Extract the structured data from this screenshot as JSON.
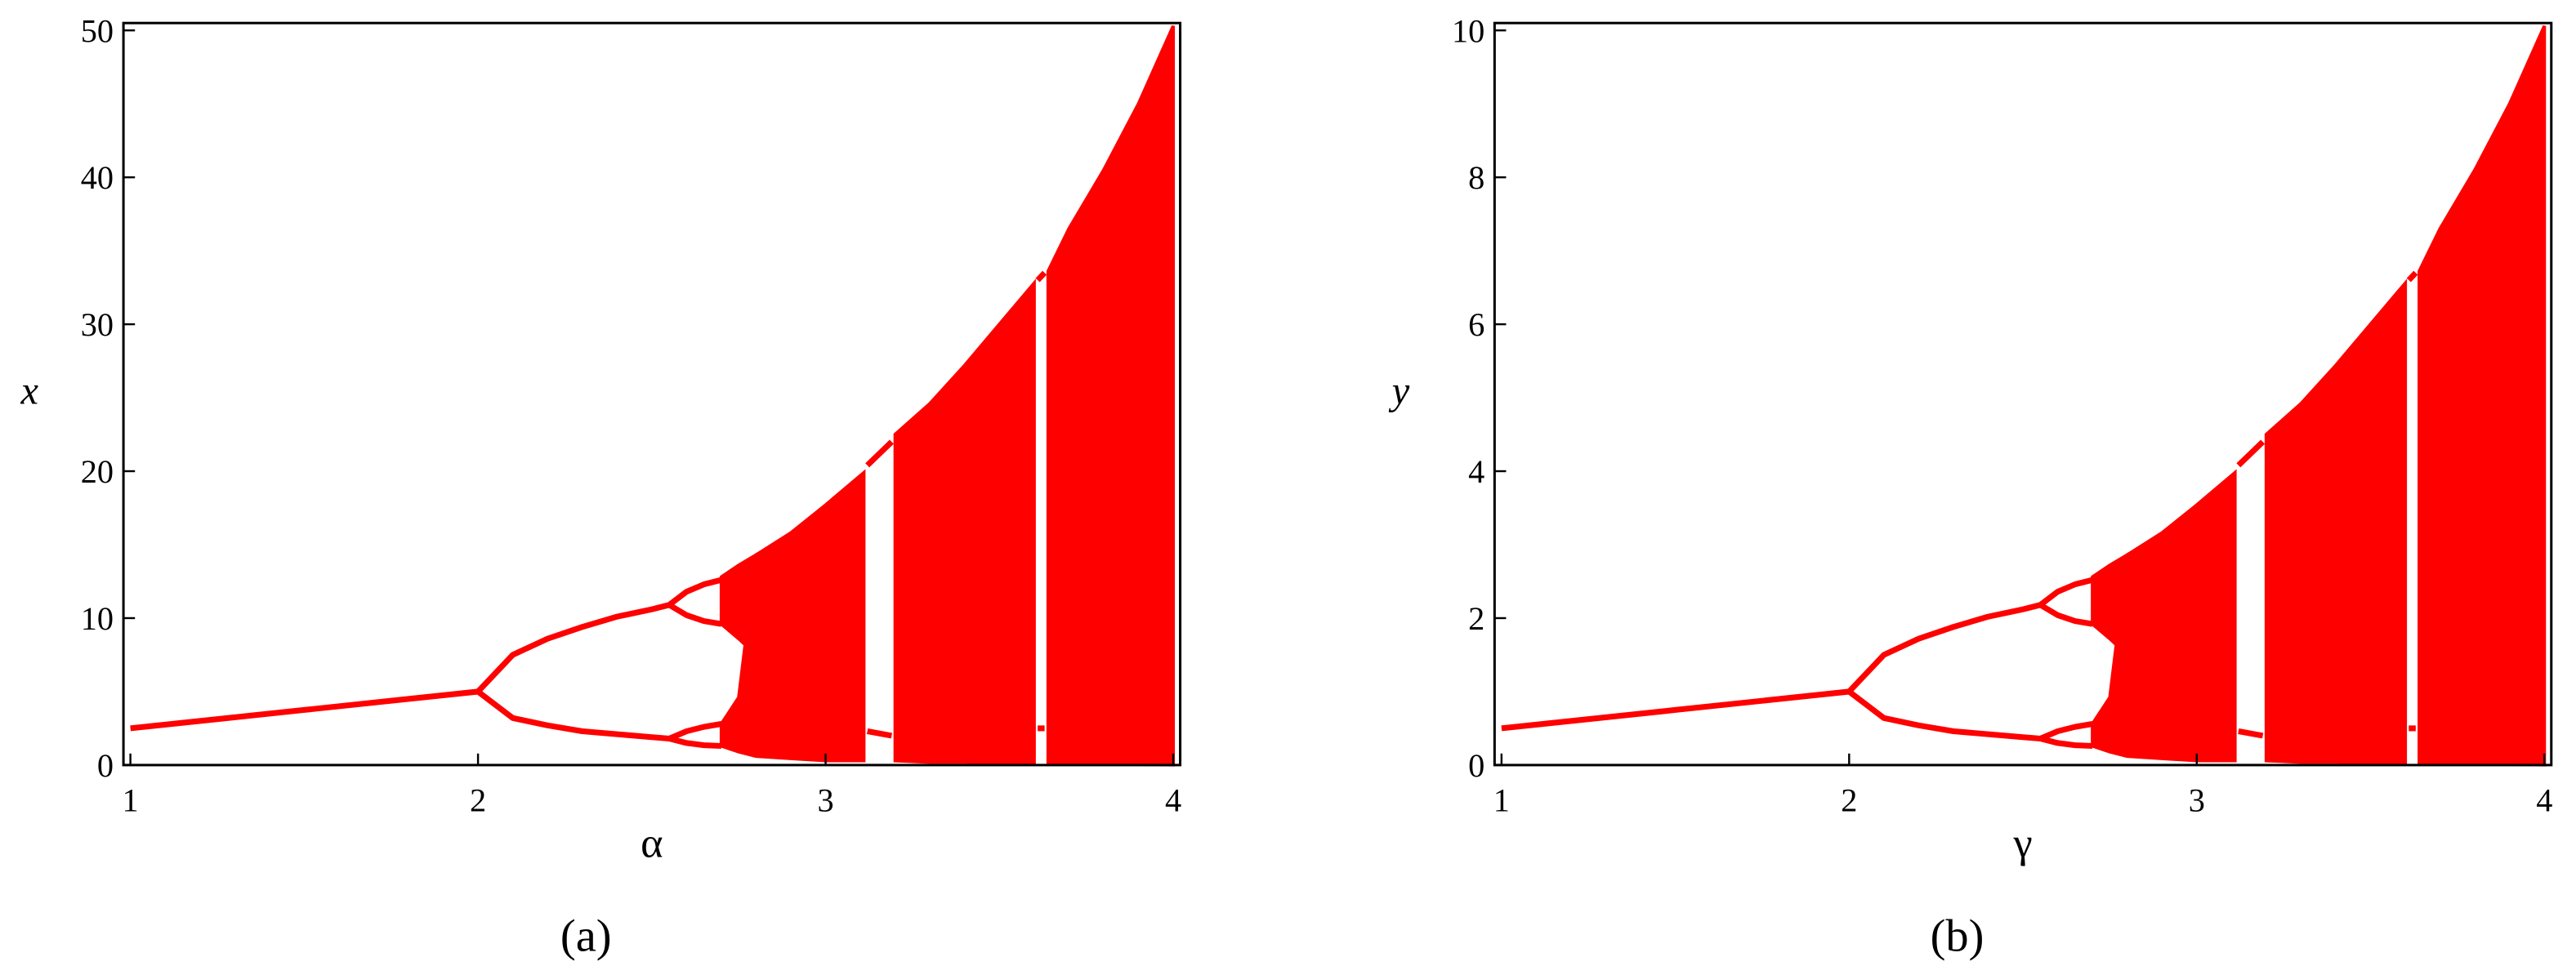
{
  "chart_data": [
    {
      "type": "bifurcation",
      "xlabel": "α",
      "ylabel": "x",
      "caption": "(a)",
      "color": "#ff0000",
      "xlim": [
        0.98,
        4.02
      ],
      "ylim": [
        0,
        50.5
      ],
      "xticks": [
        1,
        2,
        3,
        4
      ],
      "yticks": [
        0,
        10,
        20,
        30,
        40,
        50
      ],
      "x": [
        1.0,
        1.5,
        2.0,
        2.1,
        2.2,
        2.3,
        2.4,
        2.5,
        2.55,
        2.6,
        2.65,
        2.7,
        2.75,
        2.8,
        2.9,
        3.0,
        3.11,
        3.12,
        3.19,
        3.2,
        3.3,
        3.4,
        3.5,
        3.6,
        3.61,
        3.63,
        3.64,
        3.7,
        3.8,
        3.9,
        4.0
      ],
      "lines": [
        {
          "values": [
            2.5,
            3.75,
            5,
            null,
            null,
            null,
            null,
            null,
            null,
            null,
            null,
            null,
            null,
            null,
            null,
            null,
            null,
            null,
            null,
            null,
            null,
            null,
            null,
            null,
            null,
            null,
            null,
            null,
            null,
            null,
            null
          ]
        },
        {
          "values": [
            null,
            null,
            5,
            7.5,
            8.6,
            9.4,
            10.1,
            10.6,
            10.9,
            null,
            null,
            null,
            null,
            null,
            null,
            null,
            null,
            null,
            null,
            null,
            null,
            null,
            null,
            null,
            null,
            null,
            null,
            null,
            null,
            null,
            null
          ]
        },
        {
          "values": [
            null,
            null,
            5,
            3.2,
            2.7,
            2.3,
            2.1,
            1.9,
            1.8,
            null,
            null,
            null,
            null,
            null,
            null,
            null,
            null,
            null,
            null,
            null,
            null,
            null,
            null,
            null,
            null,
            null,
            null,
            null,
            null,
            null,
            null
          ]
        },
        {
          "values": [
            null,
            null,
            null,
            null,
            null,
            null,
            null,
            null,
            10.9,
            11.8,
            12.3,
            12.6,
            null,
            null,
            null,
            null,
            null,
            null,
            null,
            null,
            null,
            null,
            null,
            null,
            null,
            null,
            null,
            null,
            null,
            null,
            null
          ]
        },
        {
          "values": [
            null,
            null,
            null,
            null,
            null,
            null,
            null,
            null,
            10.9,
            10.2,
            9.8,
            9.6,
            null,
            null,
            null,
            null,
            null,
            null,
            null,
            null,
            null,
            null,
            null,
            null,
            null,
            null,
            null,
            null,
            null,
            null,
            null
          ]
        },
        {
          "values": [
            null,
            null,
            null,
            null,
            null,
            null,
            null,
            null,
            1.8,
            2.3,
            2.6,
            2.8,
            null,
            null,
            null,
            null,
            null,
            null,
            null,
            null,
            null,
            null,
            null,
            null,
            null,
            null,
            null,
            null,
            null,
            null,
            null
          ]
        },
        {
          "values": [
            null,
            null,
            null,
            null,
            null,
            null,
            null,
            null,
            1.8,
            1.5,
            1.35,
            1.3,
            null,
            null,
            null,
            null,
            null,
            null,
            null,
            null,
            null,
            null,
            null,
            null,
            null,
            null,
            null,
            null,
            null,
            null,
            null
          ]
        },
        {
          "values": [
            null,
            null,
            null,
            null,
            null,
            null,
            null,
            null,
            null,
            null,
            null,
            null,
            null,
            null,
            null,
            null,
            null,
            20.4,
            22.0,
            null,
            null,
            null,
            null,
            null,
            null,
            null,
            null,
            null,
            null,
            null,
            null
          ]
        },
        {
          "values": [
            null,
            null,
            null,
            null,
            null,
            null,
            null,
            null,
            null,
            null,
            null,
            null,
            null,
            null,
            null,
            null,
            null,
            2.3,
            2.0,
            null,
            null,
            null,
            null,
            null,
            null,
            null,
            null,
            null,
            null,
            null,
            null
          ]
        },
        {
          "values": [
            null,
            null,
            null,
            null,
            null,
            null,
            null,
            null,
            null,
            null,
            null,
            null,
            null,
            null,
            null,
            null,
            null,
            null,
            null,
            null,
            null,
            null,
            null,
            null,
            33,
            33.5,
            null,
            null,
            null,
            null,
            null
          ]
        },
        {
          "values": [
            null,
            null,
            null,
            null,
            null,
            null,
            null,
            null,
            null,
            null,
            null,
            null,
            null,
            null,
            null,
            null,
            null,
            null,
            null,
            null,
            null,
            null,
            null,
            null,
            2.5,
            2.5,
            null,
            null,
            null,
            null,
            null
          ]
        }
      ],
      "bands": [
        {
          "low": [
            null,
            null,
            null,
            null,
            null,
            null,
            null,
            null,
            null,
            null,
            null,
            9.6,
            8.6,
            7.5,
            null,
            null,
            null,
            null,
            null,
            null,
            null,
            null,
            null,
            null,
            null,
            null,
            null,
            null,
            null,
            null,
            null
          ],
          "high": [
            null,
            null,
            null,
            null,
            null,
            null,
            null,
            null,
            null,
            null,
            null,
            12.8,
            13.6,
            14.3,
            null,
            null,
            null,
            null,
            null,
            null,
            null,
            null,
            null,
            null,
            null,
            null,
            null,
            null,
            null,
            null,
            null
          ]
        },
        {
          "low": [
            null,
            null,
            null,
            null,
            null,
            null,
            null,
            null,
            null,
            null,
            null,
            1.3,
            0.9,
            0.6,
            0.45,
            0.3,
            0.3,
            null,
            null,
            0.3,
            0.2,
            0.2,
            0.15,
            0.1,
            null,
            null,
            0.1,
            0.1,
            0.05,
            0.05,
            0.02
          ],
          "high": [
            null,
            null,
            null,
            null,
            null,
            null,
            null,
            null,
            null,
            null,
            null,
            2.8,
            4.6,
            14.3,
            15.8,
            17.7,
            19.9,
            null,
            null,
            22.5,
            24.6,
            27.2,
            30,
            32.8,
            null,
            null,
            33.6,
            36.5,
            40.5,
            45,
            50.3
          ]
        }
      ]
    },
    {
      "type": "bifurcation",
      "xlabel": "γ",
      "ylabel": "y",
      "caption": "(b)",
      "color": "#ff0000",
      "xlim": [
        0.98,
        4.02
      ],
      "ylim": [
        0,
        10.1
      ],
      "xticks": [
        1,
        2,
        3,
        4
      ],
      "yticks": [
        0,
        2,
        4,
        6,
        8,
        10
      ],
      "x": [
        1.0,
        1.5,
        2.0,
        2.1,
        2.2,
        2.3,
        2.4,
        2.5,
        2.55,
        2.6,
        2.65,
        2.7,
        2.75,
        2.8,
        2.9,
        3.0,
        3.11,
        3.12,
        3.19,
        3.2,
        3.3,
        3.4,
        3.5,
        3.6,
        3.61,
        3.63,
        3.64,
        3.7,
        3.8,
        3.9,
        4.0
      ],
      "lines": [
        {
          "values": [
            0.5,
            0.75,
            1,
            null,
            null,
            null,
            null,
            null,
            null,
            null,
            null,
            null,
            null,
            null,
            null,
            null,
            null,
            null,
            null,
            null,
            null,
            null,
            null,
            null,
            null,
            null,
            null,
            null,
            null,
            null,
            null
          ]
        },
        {
          "values": [
            null,
            null,
            1,
            1.5,
            1.72,
            1.88,
            2.02,
            2.12,
            2.18,
            null,
            null,
            null,
            null,
            null,
            null,
            null,
            null,
            null,
            null,
            null,
            null,
            null,
            null,
            null,
            null,
            null,
            null,
            null,
            null,
            null,
            null
          ]
        },
        {
          "values": [
            null,
            null,
            1,
            0.64,
            0.54,
            0.46,
            0.42,
            0.38,
            0.36,
            null,
            null,
            null,
            null,
            null,
            null,
            null,
            null,
            null,
            null,
            null,
            null,
            null,
            null,
            null,
            null,
            null,
            null,
            null,
            null,
            null,
            null
          ]
        },
        {
          "values": [
            null,
            null,
            null,
            null,
            null,
            null,
            null,
            null,
            2.18,
            2.36,
            2.46,
            2.52,
            null,
            null,
            null,
            null,
            null,
            null,
            null,
            null,
            null,
            null,
            null,
            null,
            null,
            null,
            null,
            null,
            null,
            null,
            null
          ]
        },
        {
          "values": [
            null,
            null,
            null,
            null,
            null,
            null,
            null,
            null,
            2.18,
            2.04,
            1.96,
            1.92,
            null,
            null,
            null,
            null,
            null,
            null,
            null,
            null,
            null,
            null,
            null,
            null,
            null,
            null,
            null,
            null,
            null,
            null,
            null
          ]
        },
        {
          "values": [
            null,
            null,
            null,
            null,
            null,
            null,
            null,
            null,
            0.36,
            0.46,
            0.52,
            0.56,
            null,
            null,
            null,
            null,
            null,
            null,
            null,
            null,
            null,
            null,
            null,
            null,
            null,
            null,
            null,
            null,
            null,
            null,
            null
          ]
        },
        {
          "values": [
            null,
            null,
            null,
            null,
            null,
            null,
            null,
            null,
            0.36,
            0.3,
            0.27,
            0.26,
            null,
            null,
            null,
            null,
            null,
            null,
            null,
            null,
            null,
            null,
            null,
            null,
            null,
            null,
            null,
            null,
            null,
            null,
            null
          ]
        },
        {
          "values": [
            null,
            null,
            null,
            null,
            null,
            null,
            null,
            null,
            null,
            null,
            null,
            null,
            null,
            null,
            null,
            null,
            null,
            4.08,
            4.4,
            null,
            null,
            null,
            null,
            null,
            null,
            null,
            null,
            null,
            null,
            null,
            null
          ]
        },
        {
          "values": [
            null,
            null,
            null,
            null,
            null,
            null,
            null,
            null,
            null,
            null,
            null,
            null,
            null,
            null,
            null,
            null,
            null,
            0.46,
            0.4,
            null,
            null,
            null,
            null,
            null,
            null,
            null,
            null,
            null,
            null,
            null,
            null
          ]
        },
        {
          "values": [
            null,
            null,
            null,
            null,
            null,
            null,
            null,
            null,
            null,
            null,
            null,
            null,
            null,
            null,
            null,
            null,
            null,
            null,
            null,
            null,
            null,
            null,
            null,
            null,
            6.6,
            6.7,
            null,
            null,
            null,
            null,
            null
          ]
        },
        {
          "values": [
            null,
            null,
            null,
            null,
            null,
            null,
            null,
            null,
            null,
            null,
            null,
            null,
            null,
            null,
            null,
            null,
            null,
            null,
            null,
            null,
            null,
            null,
            null,
            null,
            0.5,
            0.5,
            null,
            null,
            null,
            null,
            null
          ]
        }
      ],
      "bands": [
        {
          "low": [
            null,
            null,
            null,
            null,
            null,
            null,
            null,
            null,
            null,
            null,
            null,
            1.92,
            1.72,
            1.5,
            null,
            null,
            null,
            null,
            null,
            null,
            null,
            null,
            null,
            null,
            null,
            null,
            null,
            null,
            null,
            null,
            null
          ],
          "high": [
            null,
            null,
            null,
            null,
            null,
            null,
            null,
            null,
            null,
            null,
            null,
            2.56,
            2.72,
            2.86,
            null,
            null,
            null,
            null,
            null,
            null,
            null,
            null,
            null,
            null,
            null,
            null,
            null,
            null,
            null,
            null,
            null
          ]
        },
        {
          "low": [
            null,
            null,
            null,
            null,
            null,
            null,
            null,
            null,
            null,
            null,
            null,
            0.26,
            0.18,
            0.12,
            0.09,
            0.06,
            0.06,
            null,
            null,
            0.06,
            0.04,
            0.04,
            0.03,
            0.02,
            null,
            null,
            0.02,
            0.02,
            0.01,
            0.01,
            0.004
          ],
          "high": [
            null,
            null,
            null,
            null,
            null,
            null,
            null,
            null,
            null,
            null,
            null,
            0.56,
            0.92,
            2.86,
            3.16,
            3.54,
            3.98,
            null,
            null,
            4.5,
            4.92,
            5.44,
            6,
            6.56,
            null,
            null,
            6.72,
            7.3,
            8.1,
            9,
            10.06
          ]
        }
      ]
    }
  ]
}
